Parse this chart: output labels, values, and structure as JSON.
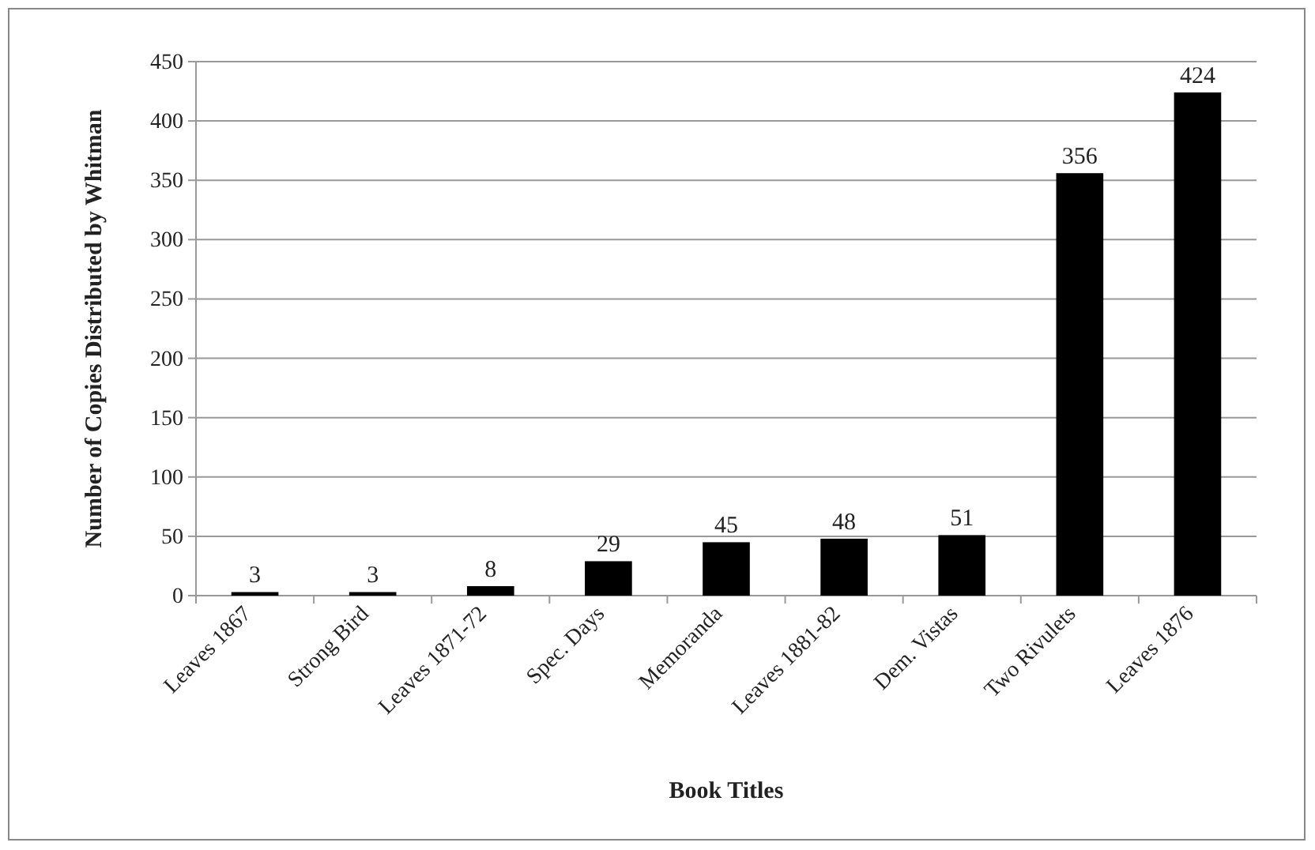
{
  "chart_data": {
    "type": "bar",
    "xlabel": "Book Titles",
    "ylabel": "Number of Copies Distributed by Whitman",
    "categories": [
      "Leaves 1867",
      "Strong Bird",
      "Leaves 1871-72",
      "Spec. Days",
      "Memoranda",
      "Leaves 1881-82",
      "Dem. Vistas",
      "Two Rivulets",
      "Leaves 1876"
    ],
    "values": [
      3,
      3,
      8,
      29,
      45,
      48,
      51,
      356,
      424
    ],
    "color": "#000000",
    "ylim": [
      0,
      450
    ],
    "yticks": [
      0,
      50,
      100,
      150,
      200,
      250,
      300,
      350,
      400,
      450
    ],
    "grid": "y",
    "data_labels": true
  }
}
